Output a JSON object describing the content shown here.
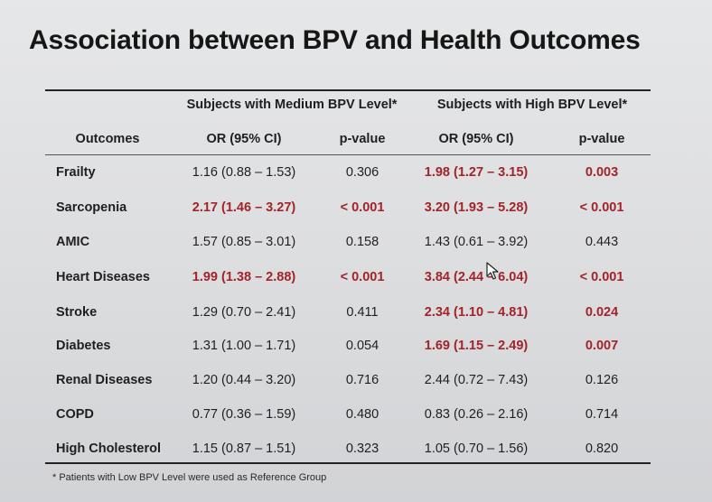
{
  "title": "Association between BPV and Health Outcomes",
  "group_headers": {
    "medium": "Subjects with Medium BPV Level*",
    "high": "Subjects with High BPV Level*"
  },
  "columns": {
    "outcomes": "Outcomes",
    "or_medium": "OR (95% CI)",
    "p_medium": "p-value",
    "or_high": "OR (95% CI)",
    "p_high": "p-value"
  },
  "rows": [
    {
      "outcome": "Frailty",
      "or_medium": "1.16 (0.88 – 1.53)",
      "p_medium": "0.306",
      "or_high": "1.98 (1.27 – 3.15)",
      "p_high": "0.003",
      "sig_medium": false,
      "sig_high": true
    },
    {
      "outcome": "Sarcopenia",
      "or_medium": "2.17 (1.46 – 3.27)",
      "p_medium": "< 0.001",
      "or_high": "3.20 (1.93 – 5.28)",
      "p_high": "< 0.001",
      "sig_medium": true,
      "sig_high": true
    },
    {
      "outcome": "AMIC",
      "or_medium": "1.57 (0.85 – 3.01)",
      "p_medium": "0.158",
      "or_high": "1.43 (0.61 – 3.92)",
      "p_high": "0.443",
      "sig_medium": false,
      "sig_high": false
    },
    {
      "outcome": "Heart Diseases",
      "or_medium": "1.99 (1.38 – 2.88)",
      "p_medium": "< 0.001",
      "or_high": "3.84 (2.44 – 6.04)",
      "p_high": "< 0.001",
      "sig_medium": true,
      "sig_high": true
    },
    {
      "outcome": "Stroke",
      "or_medium": "1.29 (0.70 – 2.41)",
      "p_medium": "0.411",
      "or_high": "2.34 (1.10 – 4.81)",
      "p_high": "0.024",
      "sig_medium": false,
      "sig_high": true
    },
    {
      "outcome": "Diabetes",
      "or_medium": "1.31 (1.00 – 1.71)",
      "p_medium": "0.054",
      "or_high": "1.69 (1.15 – 2.49)",
      "p_high": "0.007",
      "sig_medium": false,
      "sig_high": true
    },
    {
      "outcome": "Renal Diseases",
      "or_medium": "1.20 (0.44 – 3.20)",
      "p_medium": "0.716",
      "or_high": "2.44 (0.72 – 7.43)",
      "p_high": "0.126",
      "sig_medium": false,
      "sig_high": false
    },
    {
      "outcome": "COPD",
      "or_medium": "0.77 (0.36 – 1.59)",
      "p_medium": "0.480",
      "or_high": "0.83 (0.26 – 2.16)",
      "p_high": "0.714",
      "sig_medium": false,
      "sig_high": false
    },
    {
      "outcome": "High Cholesterol",
      "or_medium": "1.15 (0.87 – 1.51)",
      "p_medium": "0.323",
      "or_high": "1.05 (0.70 – 1.56)",
      "p_high": "0.820",
      "sig_medium": false,
      "sig_high": false
    }
  ],
  "footnote": "* Patients with Low BPV Level were used as Reference Group",
  "colors": {
    "significant": "#a3232a",
    "text": "#1f1f1f",
    "background": "#dcdddf"
  },
  "icons": {
    "cursor": "mouse-pointer-icon"
  }
}
